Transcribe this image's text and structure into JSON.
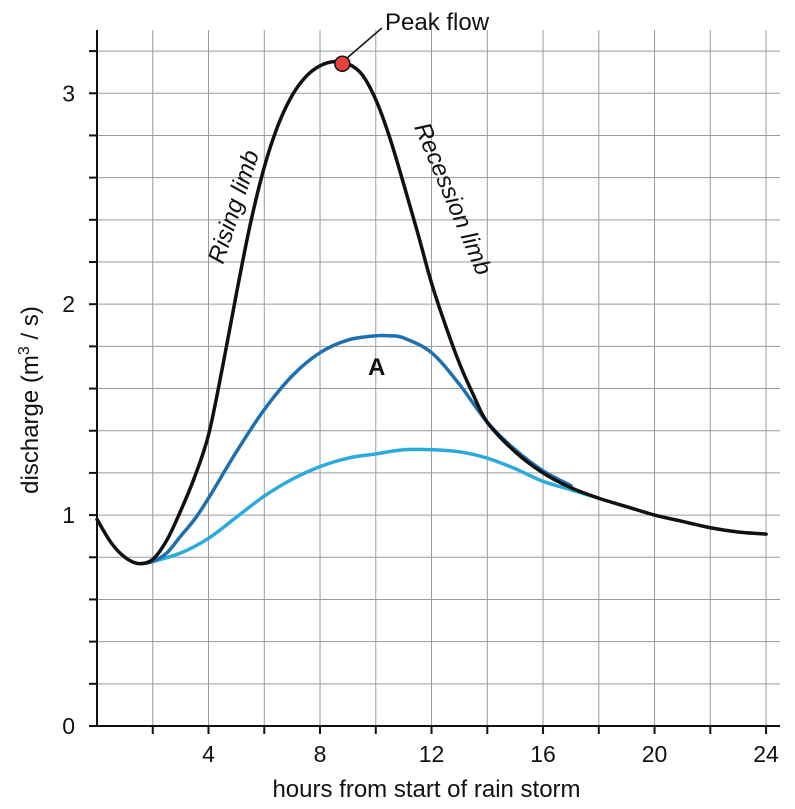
{
  "chart_data": {
    "type": "line",
    "title": "",
    "xlabel": "hours from start of rain storm",
    "ylabel_prefix": "discharge (m",
    "ylabel_sup": "3",
    "ylabel_suffix": " / s)",
    "xlim": [
      0,
      24.5
    ],
    "ylim": [
      0,
      3.3
    ],
    "x_ticks": [
      4,
      8,
      12,
      16,
      20,
      24
    ],
    "x_tick_labels": [
      "4",
      "8",
      "12",
      "16",
      "20",
      "24"
    ],
    "y_ticks": [
      0,
      1,
      2,
      3
    ],
    "y_tick_labels": [
      "0",
      "1",
      "2",
      "3"
    ],
    "x_grid": [
      2,
      4,
      6,
      8,
      10,
      12,
      14,
      16,
      18,
      20,
      22,
      24
    ],
    "y_grid_step": 0.2,
    "grid": true,
    "series": [
      {
        "color": "#111111",
        "x": [
          0,
          0.5,
          1,
          1.5,
          2,
          2.5,
          3,
          3.5,
          4,
          4.5,
          5,
          5.5,
          6,
          6.5,
          7,
          7.5,
          8,
          8.5,
          9,
          9.5,
          10,
          10.5,
          11,
          11.5,
          12,
          12.5,
          13,
          13.5,
          14,
          15,
          16,
          17,
          18,
          19,
          20,
          21,
          22,
          23,
          24
        ],
        "y": [
          0.98,
          0.87,
          0.8,
          0.77,
          0.79,
          0.88,
          1.02,
          1.18,
          1.38,
          1.7,
          2.05,
          2.38,
          2.65,
          2.85,
          2.99,
          3.08,
          3.13,
          3.15,
          3.14,
          3.09,
          2.97,
          2.79,
          2.57,
          2.34,
          2.1,
          1.9,
          1.72,
          1.57,
          1.44,
          1.3,
          1.2,
          1.13,
          1.08,
          1.04,
          1.0,
          0.97,
          0.94,
          0.92,
          0.91
        ]
      },
      {
        "color": "#1e6fb0",
        "x": [
          1.6,
          2,
          2.5,
          3,
          3.5,
          4,
          5,
          6,
          7,
          8,
          9,
          10,
          10.5,
          11,
          12,
          13,
          14,
          15,
          16,
          17
        ],
        "y": [
          0.77,
          0.78,
          0.82,
          0.9,
          0.98,
          1.08,
          1.3,
          1.5,
          1.66,
          1.77,
          1.83,
          1.85,
          1.85,
          1.84,
          1.77,
          1.62,
          1.44,
          1.31,
          1.21,
          1.14
        ]
      },
      {
        "color": "#2aaadd",
        "x": [
          1.6,
          2,
          3,
          4,
          5,
          6,
          7,
          8,
          9,
          10,
          11,
          12,
          13,
          14,
          15,
          16,
          17,
          18
        ],
        "y": [
          0.77,
          0.78,
          0.82,
          0.89,
          0.99,
          1.09,
          1.17,
          1.23,
          1.27,
          1.29,
          1.31,
          1.31,
          1.3,
          1.27,
          1.22,
          1.16,
          1.12,
          1.08
        ]
      }
    ],
    "peak_point": {
      "x": 8.8,
      "y": 3.14,
      "color": "#e8403a"
    },
    "annotations": {
      "peak_flow": "Peak flow",
      "rising_limb": "Rising limb",
      "recession_limb": "Recession limb",
      "label_a": "A"
    }
  }
}
